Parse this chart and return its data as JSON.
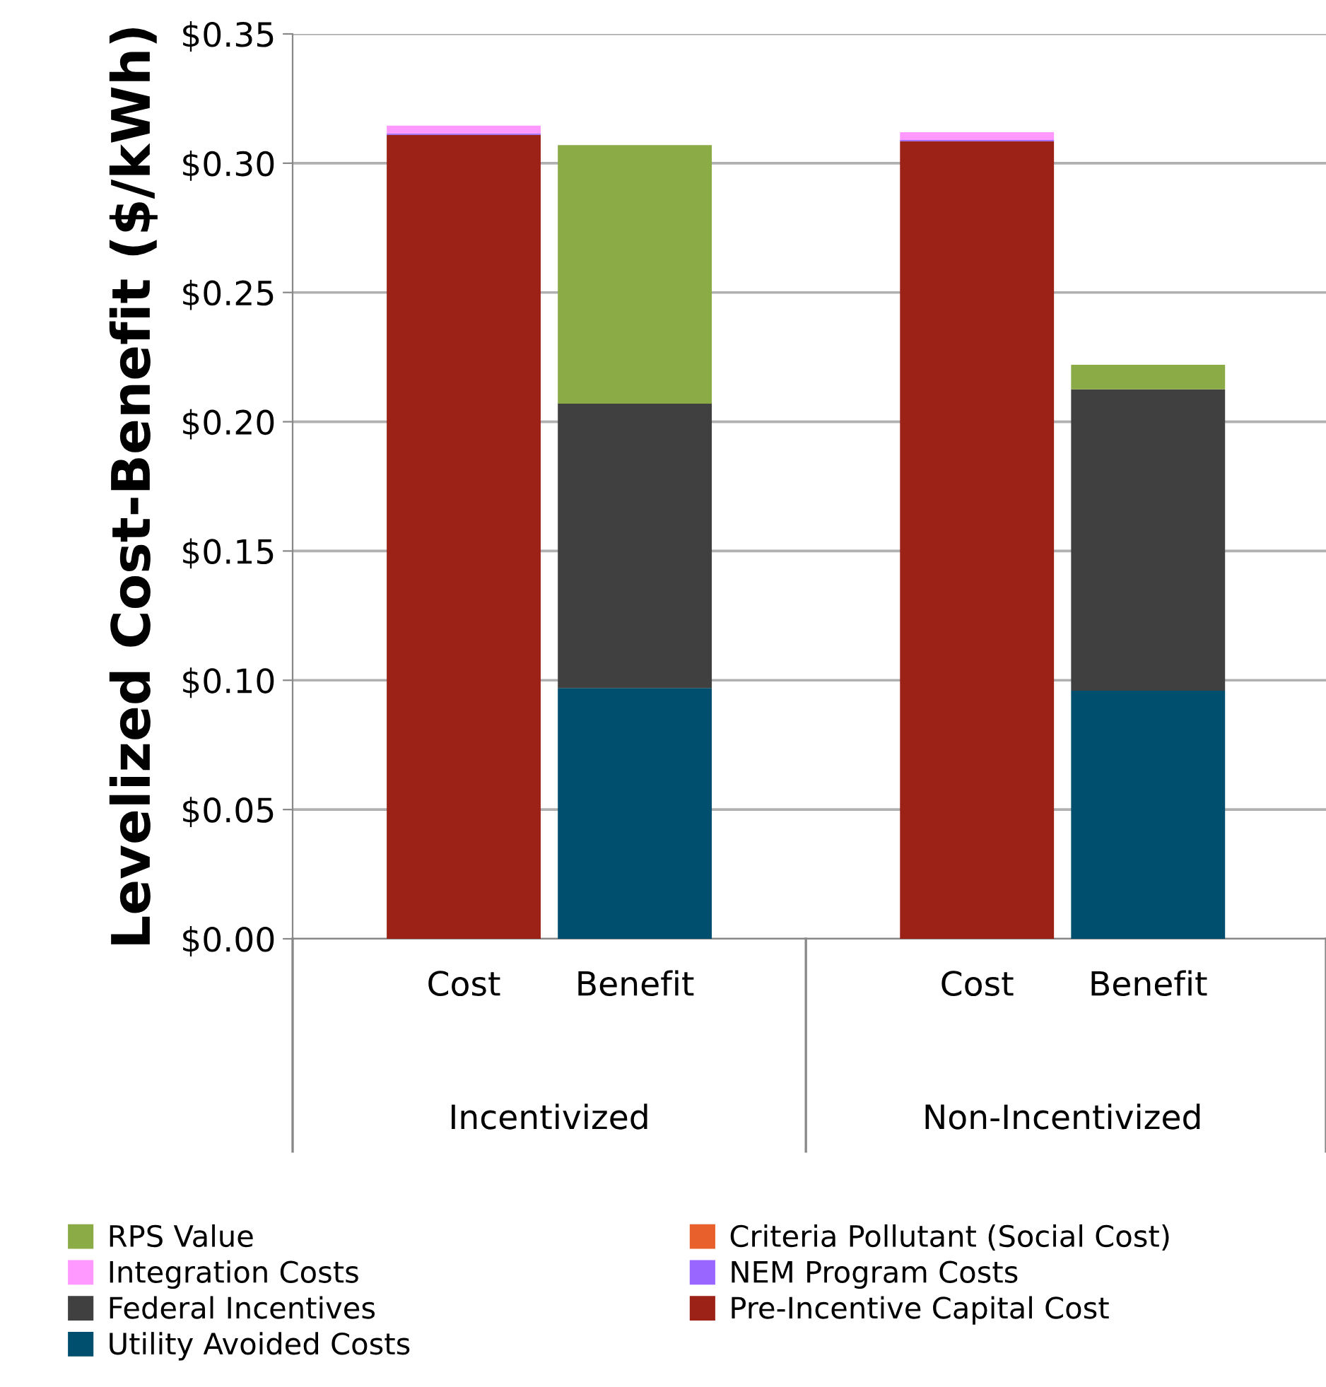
{
  "chart_data": {
    "type": "bar",
    "stacked": true,
    "ylabel": "Levelized Cost-Benefit ($/kWh)",
    "categories": [
      "Cost",
      "Benefit",
      "Cost",
      "Benefit"
    ],
    "annotations": [
      "Incentivized",
      "Non-Incentivized"
    ],
    "series": [
      {
        "name": "Pre-Incentive Capital Cost",
        "color": "#9c2116",
        "values": [
          0.311,
          0,
          0.3085,
          0
        ]
      },
      {
        "name": "NEM Program Costs",
        "color": "#9966ff",
        "values": [
          0.0005,
          0,
          0.0005,
          0
        ]
      },
      {
        "name": "Criteria Pollutant (Social Cost)",
        "color": "#e8602c",
        "values": [
          0,
          0,
          0,
          0
        ]
      },
      {
        "name": "Utility Avoided Costs",
        "color": "#004f6e",
        "values": [
          0,
          0.097,
          0,
          0.096
        ]
      },
      {
        "name": "Federal Incentives",
        "color": "#404040",
        "values": [
          0,
          0.11,
          0,
          0.1165
        ]
      },
      {
        "name": "Integration Costs",
        "color": "#ff99ff",
        "values": [
          0.003,
          0,
          0.003,
          0
        ]
      },
      {
        "name": "RPS Value",
        "color": "#8aab46",
        "values": [
          0,
          0.1,
          0,
          0.0095
        ]
      }
    ],
    "ylim": [
      0,
      0.35
    ],
    "yticks": [
      {
        "value": 0,
        "label": "$0.00"
      },
      {
        "value": 0.05,
        "label": "$0.05"
      },
      {
        "value": 0.1,
        "label": "$0.10"
      },
      {
        "value": 0.15,
        "label": "$0.15"
      },
      {
        "value": 0.2,
        "label": "$0.20"
      },
      {
        "value": 0.25,
        "label": "$0.25"
      },
      {
        "value": 0.3,
        "label": "$0.30"
      },
      {
        "value": 0.35,
        "label": "$0.35"
      }
    ],
    "grid": "y",
    "legend": "bottom"
  }
}
